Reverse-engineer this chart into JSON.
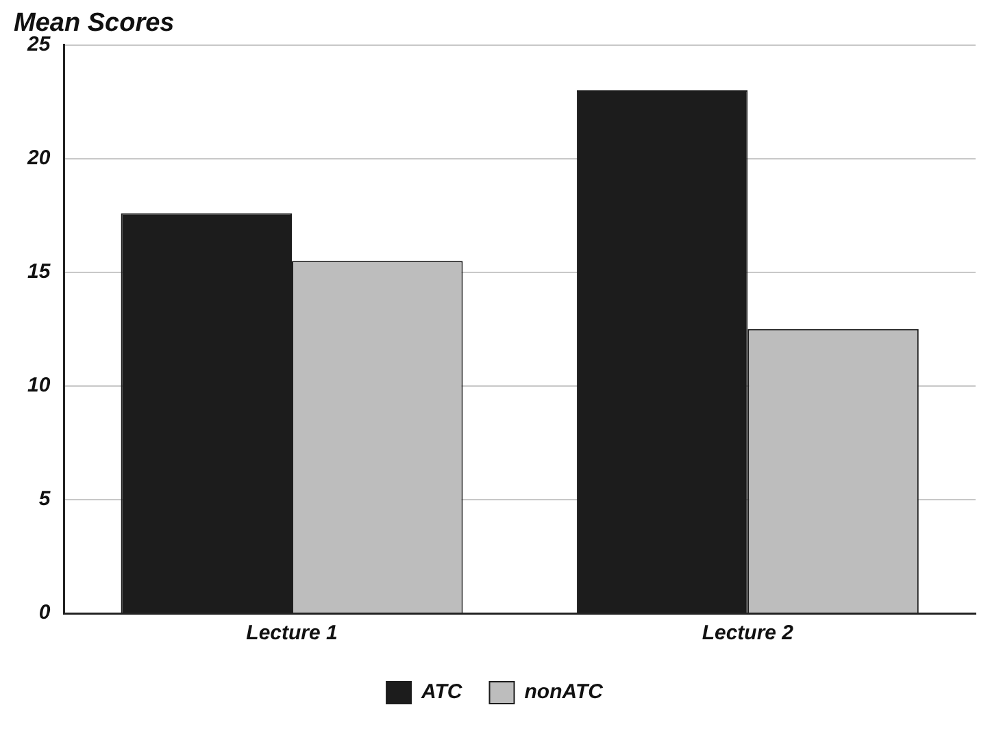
{
  "chart_data": {
    "type": "bar",
    "title": "Mean Scores",
    "categories": [
      "Lecture 1",
      "Lecture 2"
    ],
    "series": [
      {
        "name": "ATC",
        "color": "#1c1c1c",
        "values": [
          17.6,
          23
        ]
      },
      {
        "name": "nonATC",
        "color": "#bdbdbd",
        "values": [
          15.5,
          12.5
        ]
      }
    ],
    "ylim": [
      0,
      25
    ],
    "yticks": [
      0,
      5,
      10,
      15,
      20,
      25
    ],
    "grid": "y",
    "legend": "bottom"
  }
}
